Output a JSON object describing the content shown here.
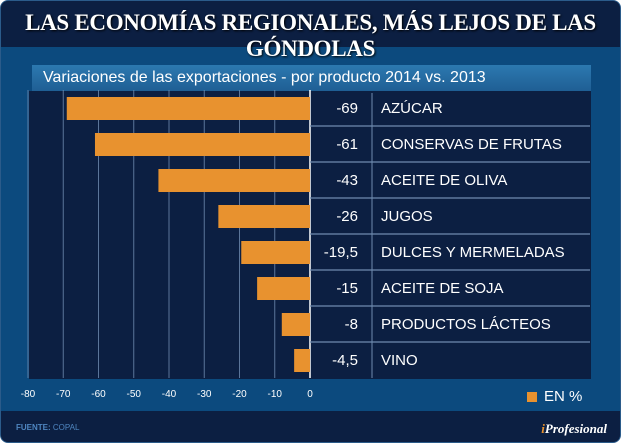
{
  "header": {
    "title": "LAS ECONOMÍAS REGIONALES, MÁS LEJOS DE LAS GÓNDOLAS"
  },
  "footer": {
    "source_label": "FUENTE:",
    "source_value": "COPAL",
    "brand_i": "i",
    "brand_rest": "Profesional"
  },
  "colors": {
    "bar": "#e8922f",
    "background_panel": "#0c4a7e",
    "chart_background": "#0c1f42",
    "gridline": "#6f8bb0",
    "text": "#ffffff"
  },
  "chart_data": {
    "type": "bar",
    "orientation": "horizontal",
    "title": "Variaciones de las exportaciones - por producto 2014 vs. 2013",
    "xlabel": "",
    "ylabel": "",
    "xlim": [
      -80,
      0
    ],
    "grid": true,
    "categories": [
      "AZÚCAR",
      "CONSERVAS DE FRUTAS",
      "ACEITE DE OLIVA",
      "JUGOS",
      "DULCES Y MERMELADAS",
      "ACEITE DE SOJA",
      "PRODUCTOS LÁCTEOS",
      "VINO"
    ],
    "values": [
      -69,
      -61,
      -43,
      -26,
      -19.5,
      -15,
      -8,
      -4.5
    ],
    "value_labels": [
      "-69",
      "-61",
      "-43",
      "-26",
      "-19,5",
      "-15",
      "-8",
      "-4,5"
    ],
    "x_ticks": [
      -80,
      -70,
      -60,
      -50,
      -40,
      -30,
      -20,
      -10,
      0
    ],
    "x_tick_labels": [
      "-80",
      "-70",
      "-60",
      "-50",
      "-40",
      "-30",
      "-20",
      "-10",
      "0"
    ],
    "legend": [
      {
        "name": "EN %",
        "color": "#e8922f"
      }
    ],
    "legend_position": "bottom-right"
  }
}
